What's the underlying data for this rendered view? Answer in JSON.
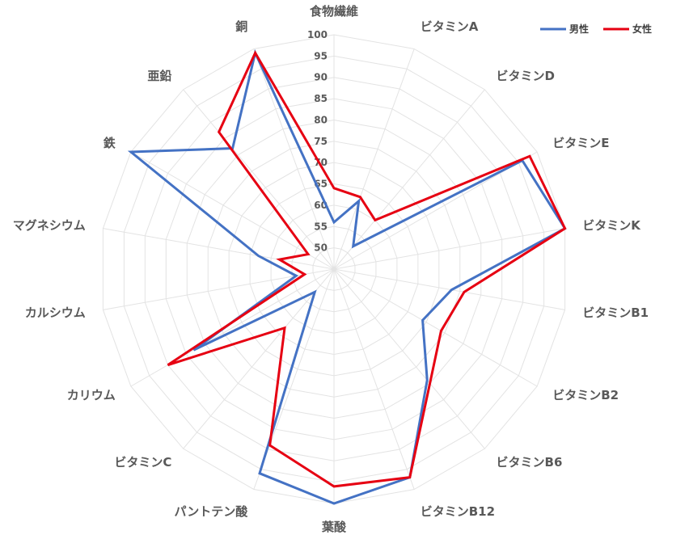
{
  "chart_data": {
    "type": "radar",
    "title": "",
    "categories": [
      "食物繊維",
      "ビタミンA",
      "ビタミンD",
      "ビタミンE",
      "ビタミンK",
      "ビタミンB1",
      "ビタミンB2",
      "ビタミンB6",
      "ビタミンB12",
      "葉酸",
      "パントテン酸",
      "ビタミンC",
      "カリウム",
      "カルシウム",
      "マグネシウム",
      "鉄",
      "亜鉛",
      "銅"
    ],
    "rlim": [
      45,
      100
    ],
    "ticks": [
      50,
      55,
      60,
      65,
      70,
      75,
      80,
      85,
      90,
      95,
      100
    ],
    "grid": true,
    "legend_position": "top-right",
    "series": [
      {
        "name": "男性",
        "color": "#4472C4",
        "values": [
          56,
          62,
          52,
          96,
          100,
          73,
          69,
          79,
          97,
          100,
          96,
          52,
          83,
          54,
          63,
          100,
          82,
          99
        ]
      },
      {
        "name": "女性",
        "color": "#E60012",
        "values": [
          64,
          63,
          60,
          98,
          100,
          76,
          74,
          80,
          97,
          96,
          89,
          63,
          90,
          52,
          58,
          52,
          87,
          99
        ]
      }
    ]
  }
}
